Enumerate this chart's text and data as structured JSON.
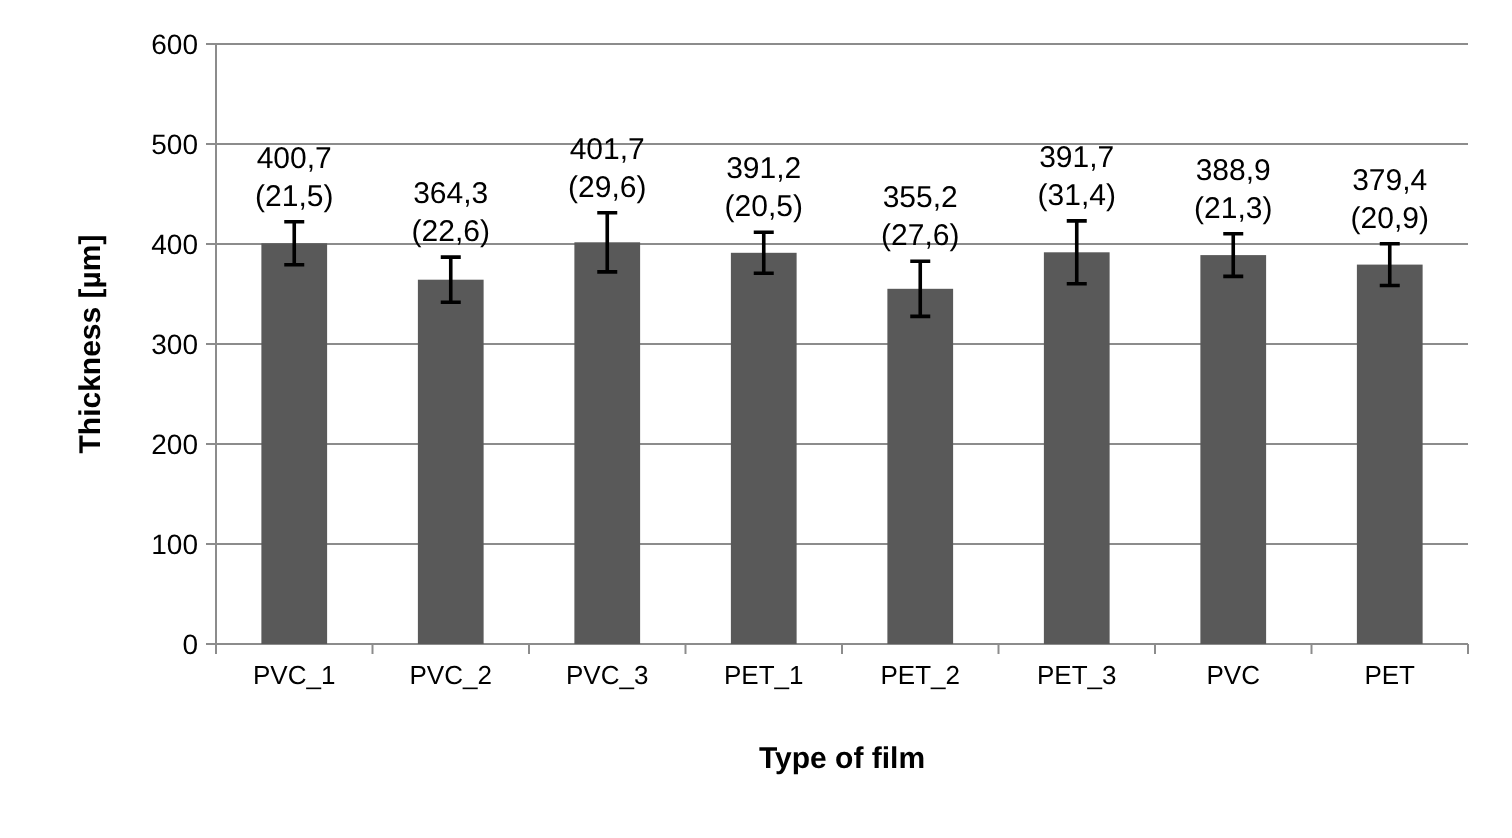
{
  "chart_data": {
    "type": "bar",
    "xlabel": "Type of film",
    "ylabel": "Thickness [µm]",
    "categories": [
      "PVC_1",
      "PVC_2",
      "PVC_3",
      "PET_1",
      "PET_2",
      "PET_3",
      "PVC",
      "PET"
    ],
    "values": [
      400.7,
      364.3,
      401.7,
      391.2,
      355.2,
      391.7,
      388.9,
      379.4
    ],
    "errors": [
      21.5,
      22.6,
      29.6,
      20.5,
      27.6,
      31.4,
      21.3,
      20.9
    ],
    "value_labels": [
      "400,7 (21,5)",
      "364,3 (22,6)",
      "401,7 (29,6)",
      "391,2 (20,5)",
      "355,2 (27,6)",
      "391,7 (31,4)",
      "388,9 (21,3)",
      "379,4 (20,9)"
    ],
    "color": "#595959",
    "ylim": [
      0,
      600
    ],
    "yticks": [
      0,
      100,
      200,
      300,
      400,
      500,
      600
    ],
    "grid": "y"
  }
}
